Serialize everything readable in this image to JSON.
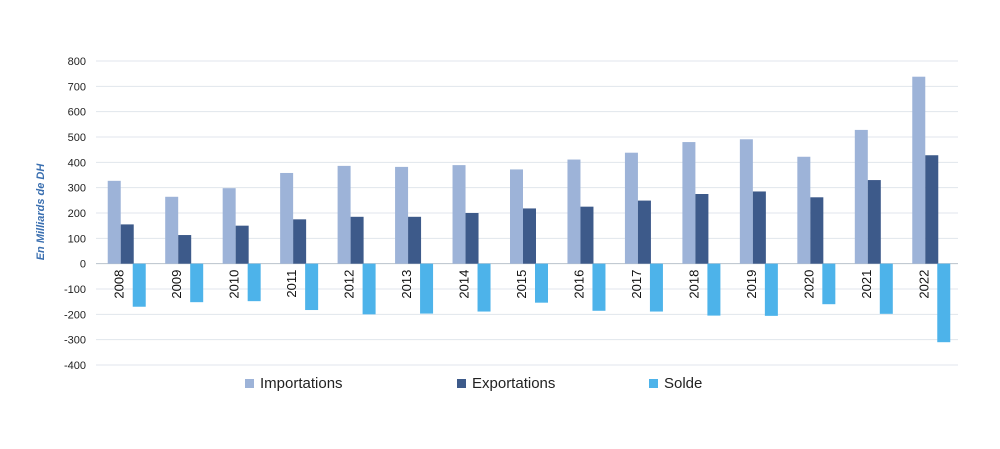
{
  "chart_data": {
    "type": "bar",
    "ylabel": "En Milliards de DH",
    "ylim": [
      -400,
      800
    ],
    "yticks": [
      800,
      700,
      600,
      500,
      400,
      300,
      200,
      100,
      0,
      -100,
      -200,
      -300,
      -400
    ],
    "grid": true,
    "legend_position": "bottom",
    "categories": [
      "2008",
      "2009",
      "2010",
      "2011",
      "2012",
      "2013",
      "2014",
      "2015",
      "2016",
      "2017",
      "2018",
      "2019",
      "2020",
      "2021",
      "2022"
    ],
    "series": [
      {
        "name": "Importations",
        "color": "#9db3d8",
        "values": [
          327,
          264,
          298,
          358,
          386,
          382,
          389,
          372,
          411,
          438,
          480,
          491,
          422,
          528,
          738
        ]
      },
      {
        "name": "Exportations",
        "color": "#3d5a8a",
        "values": [
          155,
          113,
          150,
          175,
          185,
          185,
          200,
          218,
          225,
          249,
          275,
          285,
          262,
          330,
          428
        ]
      },
      {
        "name": "Solde",
        "color": "#4db3ea",
        "values": [
          -170,
          -152,
          -148,
          -183,
          -200,
          -197,
          -189,
          -154,
          -186,
          -189,
          -205,
          -206,
          -160,
          -198,
          -310
        ]
      }
    ]
  }
}
